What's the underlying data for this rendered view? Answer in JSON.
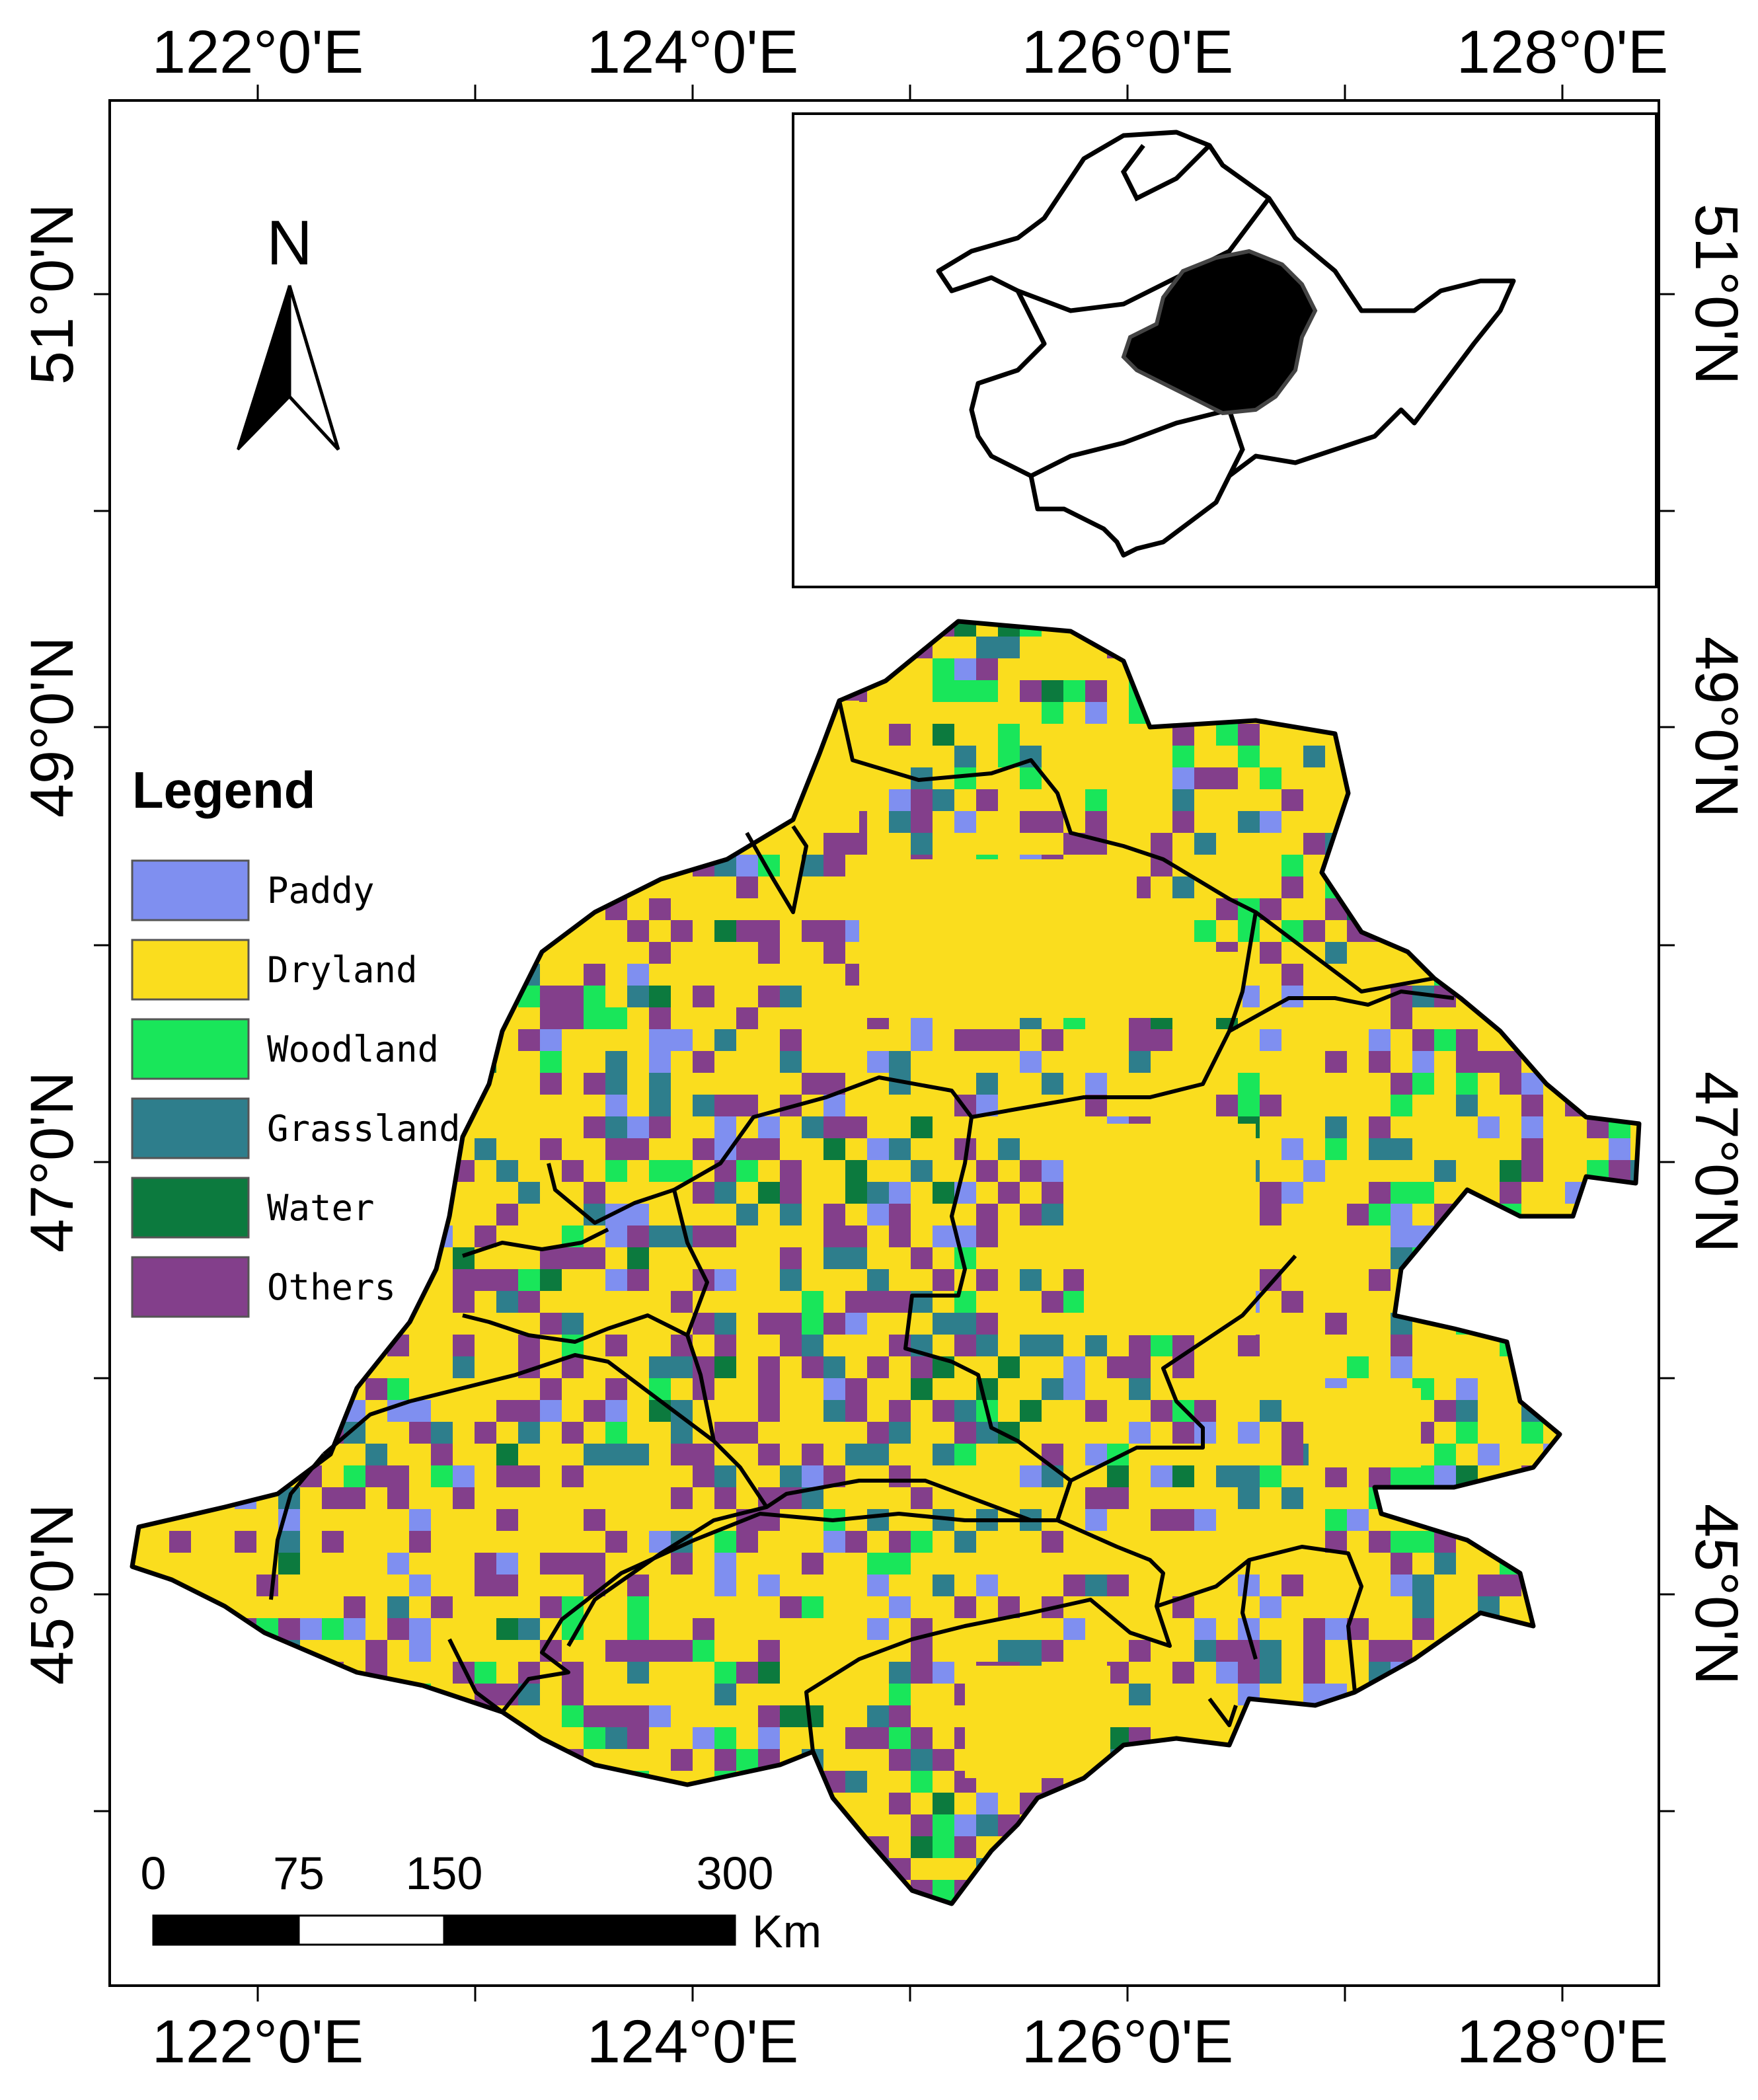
{
  "axes": {
    "top_labels": [
      "122°0'E",
      "124°0'E",
      "126°0'E",
      "128°0'E"
    ],
    "bottom_labels": [
      "122°0'E",
      "124°0'E",
      "126°0'E",
      "128°0'E"
    ],
    "left_labels": [
      "51°0'N",
      "49°0'N",
      "47°0'N",
      "45°0'N"
    ],
    "right_labels": [
      "51°0'N",
      "49°0'N",
      "47°0'N",
      "45°0'N"
    ]
  },
  "north_arrow": {
    "label": "N"
  },
  "legend": {
    "title": "Legend",
    "items": [
      {
        "label": "Paddy",
        "color": "#7f8ff0"
      },
      {
        "label": "Dryland",
        "color": "#fadd1e"
      },
      {
        "label": "Woodland",
        "color": "#19e65a"
      },
      {
        "label": "Grassland",
        "color": "#2e7e8c"
      },
      {
        "label": "Water",
        "color": "#0c7a3e"
      },
      {
        "label": "Others",
        "color": "#833f8b"
      }
    ]
  },
  "scale_bar": {
    "ticks": [
      "0",
      "75",
      "150",
      "300"
    ],
    "unit": "Km"
  },
  "colors": {
    "frame": "#000000",
    "boundary": "#000000",
    "inset_region": "#000000"
  }
}
